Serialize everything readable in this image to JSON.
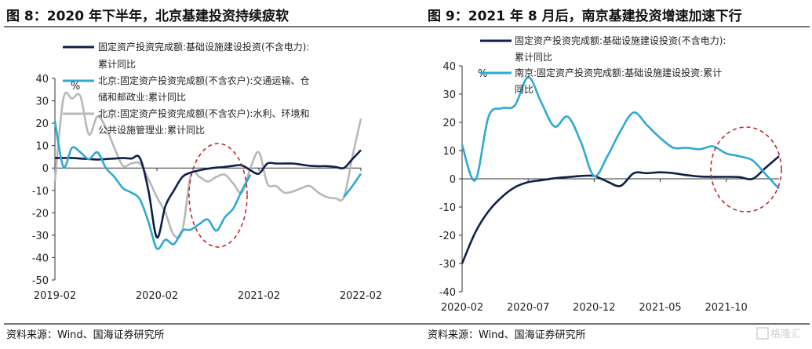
{
  "titles": [
    "图 8：2020 年下半年，北京基建投资持续疲软",
    "图 9：2021 年 8 月后，南京基建投资增速加速下行"
  ],
  "footers": [
    "资料来源：Wind、国海证券研究所",
    "资料来源：Wind、国海证券研究所"
  ],
  "watermark": "格隆汇",
  "colors": {
    "dark": "#0d2147",
    "light": "#2fa8d4",
    "gray": "#b8b8b8",
    "highlight": "#c0272d"
  },
  "chart_data": [
    {
      "type": "line",
      "title": "图 8：2020 年下半年，北京基建投资持续疲软",
      "ylabel": "%",
      "ylim": [
        -50,
        40
      ],
      "yticks": [
        "40",
        "30",
        "20",
        "10",
        "0",
        "-10",
        "-20",
        "-30",
        "-40",
        "-50"
      ],
      "xstart": "2019-02",
      "xend": "2022-02",
      "xticks": [
        "2019-02",
        "2020-02",
        "2021-02",
        "2022-02"
      ],
      "legend_lines": [
        [
          "固定资产投资完成额:基础设施建设投资(不含电力):",
          "累计同比"
        ],
        [
          "北京:固定资产投资完成额(不含农户):交通运输、仓",
          "储和邮政业:累计同比"
        ],
        [
          "北京:固定资产投资完成额(不含农户):水利、环境和",
          "公共设施管理业:累计同比"
        ]
      ],
      "series": [
        {
          "name": "固定资产投资完成额:基础设施建设投资(不含电力):累计同比",
          "color": "#0d2147",
          "values": [
            4.5,
            4.5,
            4.5,
            4.2,
            4,
            3.8,
            4,
            4.2,
            4.5,
            4.2,
            4.5,
            -10,
            -31,
            -17,
            -10,
            -4,
            -2,
            -1,
            -0.3,
            0.2,
            0.5,
            1,
            1.2,
            -1,
            -2.5,
            2,
            2,
            2,
            2,
            1.5,
            1,
            0.8,
            0.8,
            0.5,
            0,
            4,
            8
          ]
        },
        {
          "name": "北京:固定资产投资完成额(不含农户):交通运输、仓储和邮政业:累计同比",
          "color": "#2fa8d4",
          "values": [
            21,
            0.5,
            9,
            7,
            4,
            7,
            0,
            -4,
            -9,
            -11,
            -14,
            -24,
            -36,
            -32,
            -34,
            -28,
            -27.5,
            -25,
            -23,
            -28,
            -22,
            -18,
            -10,
            -3,
            null,
            null,
            null,
            null,
            null,
            null,
            null,
            null,
            null,
            null,
            -13,
            -8,
            -2.5
          ]
        },
        {
          "name": "北京:固定资产投资完成额(不含农户):水利、环境和公共设施管理业:累计同比",
          "color": "#b8b8b8",
          "values": [
            -6,
            31,
            31,
            32,
            15,
            23,
            18,
            9,
            1,
            2,
            2,
            -5,
            -13,
            -20,
            -30,
            -28,
            -3,
            -4,
            -6,
            -4,
            -3,
            -7,
            -11,
            0,
            7,
            -7,
            -8,
            -11,
            -10.5,
            -9,
            -8,
            -11,
            -13,
            -13.5,
            -13,
            5,
            22
          ]
        }
      ]
    },
    {
      "type": "line",
      "title": "图 9：2021 年 8 月后，南京基建投资增速加速下行",
      "ylabel": "%",
      "ylim": [
        -40,
        40
      ],
      "yticks": [
        "40",
        "30",
        "20",
        "10",
        "0",
        "-10",
        "-20",
        "-30",
        "-40"
      ],
      "xstart": "2020-02",
      "xend": "2022-02",
      "xticks": [
        "2020-02",
        "2020-07",
        "2020-12",
        "2021-05",
        "2021-10"
      ],
      "legend_lines": [
        [
          "固定资产投资完成额:基础设施建设投资(不含电力):",
          "累计同比"
        ],
        [
          "南京:固定资产投资完成额:基础设施建设投资:累计",
          "同比"
        ]
      ],
      "series": [
        {
          "name": "固定资产投资完成额:基础设施建设投资(不含电力):累计同比",
          "color": "#0d2147",
          "values": [
            -30,
            -19,
            -11.5,
            -6.5,
            -3,
            -1.2,
            -0.5,
            0.2,
            0.6,
            1,
            1,
            -1,
            -2.5,
            2,
            2,
            2.3,
            2,
            1.3,
            0.8,
            0.7,
            0.7,
            0.6,
            0,
            4,
            8
          ]
        },
        {
          "name": "南京:固定资产投资完成额:基础设施建设投资:累计同比",
          "color": "#2fa8d4",
          "values": [
            12,
            -0.5,
            22,
            25,
            26,
            36,
            27,
            18.5,
            22,
            13,
            1,
            8,
            17,
            23.5,
            19,
            14.5,
            11,
            11,
            10.5,
            11.5,
            9,
            8,
            6.5,
            1.5,
            -3.5
          ]
        }
      ]
    }
  ]
}
